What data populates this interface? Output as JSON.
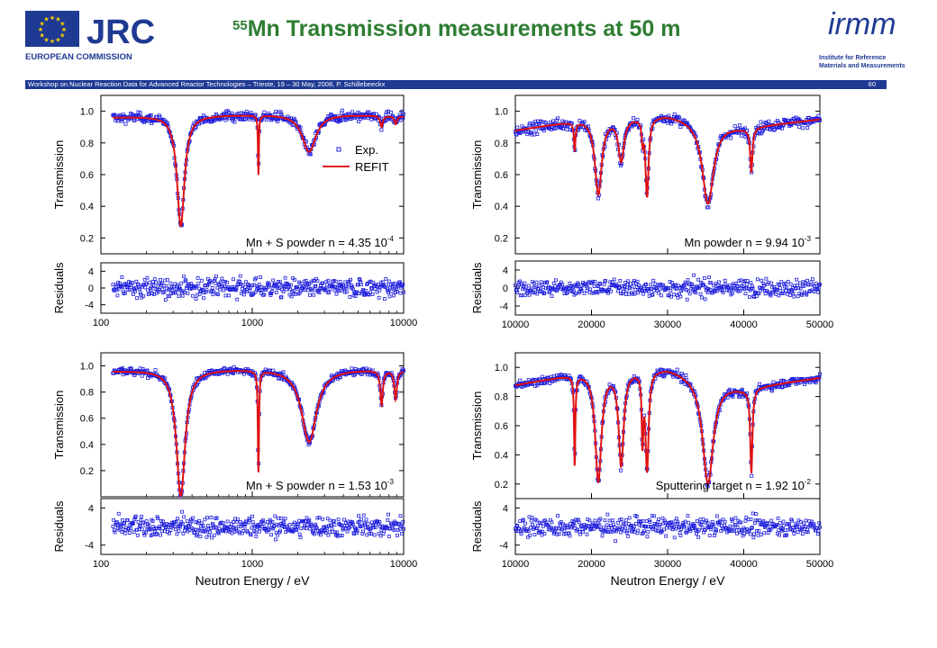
{
  "header": {
    "jrc_text": "JRC",
    "commission_text": "EUROPEAN COMMISSION",
    "title_sup": "55",
    "title_main": "Mn Transmission measurements at 50 m",
    "irmm_text": "irmm",
    "irmm_caption": [
      "Institute for Reference",
      "Materials and Measurements"
    ],
    "workshop": "Workshop on Nuclear Reaction Data for Advanced Reactor Technologies  – Trieste, 19 – 30 May, 2008, P. Schillebeeckx",
    "page_number": "60"
  },
  "colors": {
    "data": "#1f1fdd",
    "fit": "#e01010",
    "title": "#2e7d32",
    "bar": "#1f3a93"
  },
  "chart_data": [
    {
      "type": "scatter",
      "xscale": "log",
      "xlim": [
        100,
        10000
      ],
      "xticks": [
        "100",
        "1000",
        "10000"
      ],
      "xlabel": "",
      "transmission": {
        "ylabel": "Transmission",
        "ylim": [
          0.1,
          1.1
        ],
        "yticks": [
          "0.2",
          "0.4",
          "0.6",
          "0.8",
          "1.0"
        ]
      },
      "residuals": {
        "ylabel": "Residuals",
        "ylim": [
          -6,
          6
        ],
        "yticks": [
          "-4",
          "0",
          "4"
        ]
      },
      "legend": {
        "position": "center-right",
        "entries": [
          "Exp.",
          "REFIT"
        ]
      },
      "annotation": {
        "prefix": "Mn + S powder n = 4.35 10",
        "exponent": "-4"
      },
      "baseline": {
        "x": [
          100,
          300,
          1000,
          3000,
          10000
        ],
        "y": [
          0.96,
          0.975,
          0.98,
          0.985,
          0.97
        ]
      },
      "dips": [
        {
          "x": 337,
          "depth": 0.7,
          "width": 0.03
        },
        {
          "x": 1098,
          "depth": 0.38,
          "width": 0.0035
        },
        {
          "x": 2375,
          "depth": 0.24,
          "width": 0.055
        },
        {
          "x": 7150,
          "depth": 0.07,
          "width": 0.01
        },
        {
          "x": 8850,
          "depth": 0.05,
          "width": 0.01
        }
      ],
      "noise": 0.022,
      "residual_amplitude": 1.6
    },
    {
      "type": "scatter",
      "xscale": "linear",
      "xlim": [
        10000,
        50000
      ],
      "xticks": [
        "10000",
        "20000",
        "30000",
        "40000",
        "50000"
      ],
      "xlabel": "",
      "transmission": {
        "ylabel": "Transmission",
        "ylim": [
          0.1,
          1.1
        ],
        "yticks": [
          "0.2",
          "0.4",
          "0.6",
          "0.8",
          "1.0"
        ]
      },
      "residuals": {
        "ylabel": "Residuals",
        "ylim": [
          -6,
          6
        ],
        "yticks": [
          "-4",
          "0",
          "4"
        ]
      },
      "annotation": {
        "prefix": "Mn powder n = 9.94 10",
        "exponent": "-3"
      },
      "baseline": {
        "x": [
          10000,
          20000,
          30000,
          40000,
          50000
        ],
        "y": [
          0.88,
          0.96,
          0.98,
          0.9,
          0.95
        ]
      },
      "dips": [
        {
          "x": 17800,
          "depth": 0.18,
          "width": 120
        },
        {
          "x": 20900,
          "depth": 0.48,
          "width": 550
        },
        {
          "x": 23900,
          "depth": 0.27,
          "width": 450
        },
        {
          "x": 26700,
          "depth": 0.12,
          "width": 120
        },
        {
          "x": 27300,
          "depth": 0.5,
          "width": 250
        },
        {
          "x": 35300,
          "depth": 0.52,
          "width": 900
        },
        {
          "x": 41000,
          "depth": 0.28,
          "width": 180
        }
      ],
      "noise": 0.025,
      "residual_amplitude": 1.4
    },
    {
      "type": "scatter",
      "xscale": "log",
      "xlim": [
        100,
        10000
      ],
      "xticks": [
        "100",
        "1000",
        "10000"
      ],
      "xlabel": "Neutron Energy / eV",
      "transmission": {
        "ylabel": "Transmission",
        "ylim": [
          0.0,
          1.1
        ],
        "yticks": [
          "0.2",
          "0.4",
          "0.6",
          "0.8",
          "1.0"
        ]
      },
      "residuals": {
        "ylabel": "Residuals",
        "ylim": [
          -6,
          6
        ],
        "yticks": [
          "-4",
          "4"
        ]
      },
      "annotation": {
        "prefix": "Mn + S powder n = 1.53 10",
        "exponent": "-3"
      },
      "baseline": {
        "x": [
          100,
          300,
          1000,
          3000,
          10000
        ],
        "y": [
          0.96,
          0.975,
          0.98,
          0.98,
          0.97
        ]
      },
      "dips": [
        {
          "x": 337,
          "depth": 0.97,
          "width": 0.035
        },
        {
          "x": 1098,
          "depth": 0.78,
          "width": 0.0045
        },
        {
          "x": 2375,
          "depth": 0.56,
          "width": 0.06
        },
        {
          "x": 7150,
          "depth": 0.26,
          "width": 0.01
        },
        {
          "x": 8850,
          "depth": 0.22,
          "width": 0.01
        }
      ],
      "noise": 0.02,
      "residual_amplitude": 1.6
    },
    {
      "type": "scatter",
      "xscale": "linear",
      "xlim": [
        10000,
        50000
      ],
      "xticks": [
        "10000",
        "20000",
        "30000",
        "40000",
        "50000"
      ],
      "xlabel": "Neutron Energy / eV",
      "transmission": {
        "ylabel": "Transmission",
        "ylim": [
          0.1,
          1.1
        ],
        "yticks": [
          "0.2",
          "0.4",
          "0.6",
          "0.8",
          "1.0"
        ]
      },
      "residuals": {
        "ylabel": "Residuals",
        "ylim": [
          -6,
          6
        ],
        "yticks": [
          "-4",
          "4"
        ]
      },
      "annotation": {
        "prefix": "Sputtering target n = 1.92 10",
        "exponent": "-2"
      },
      "baseline": {
        "x": [
          10000,
          20000,
          30000,
          40000,
          50000
        ],
        "y": [
          0.88,
          0.98,
          1.0,
          0.86,
          0.93
        ]
      },
      "dips": [
        {
          "x": 17800,
          "depth": 0.62,
          "width": 100
        },
        {
          "x": 20900,
          "depth": 0.75,
          "width": 500
        },
        {
          "x": 23900,
          "depth": 0.64,
          "width": 400
        },
        {
          "x": 26700,
          "depth": 0.45,
          "width": 120
        },
        {
          "x": 27300,
          "depth": 0.68,
          "width": 250
        },
        {
          "x": 35300,
          "depth": 0.72,
          "width": 850
        },
        {
          "x": 41000,
          "depth": 0.58,
          "width": 170
        }
      ],
      "noise": 0.02,
      "residual_amplitude": 1.5
    }
  ]
}
